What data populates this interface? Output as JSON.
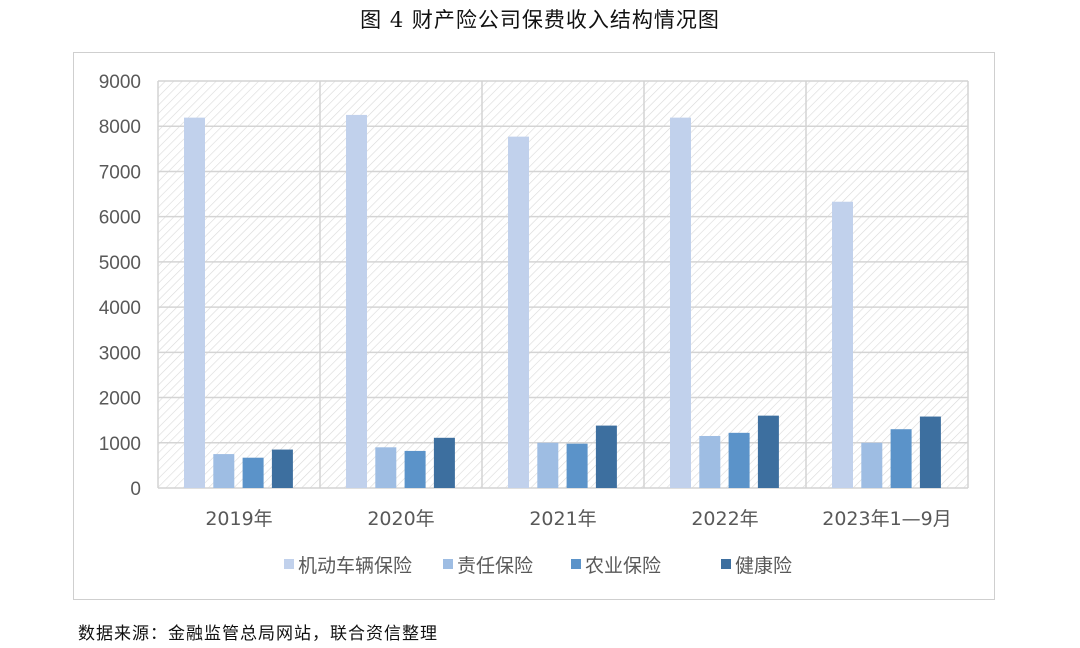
{
  "figure": {
    "title": "图 4  财产险公司保费收入结构情况图",
    "source": "数据来源：金融监管总局网站，联合资信整理"
  },
  "chart_data": {
    "type": "bar",
    "categories": [
      "2019年",
      "2020年",
      "2021年",
      "2022年",
      "2023年1—9月"
    ],
    "series": [
      {
        "name": "机动车辆保险",
        "color": "#c1d1ec",
        "values": [
          8190,
          8250,
          7770,
          8190,
          6330
        ]
      },
      {
        "name": "责任保险",
        "color": "#9ebde3",
        "values": [
          750,
          900,
          1000,
          1150,
          1000
        ]
      },
      {
        "name": "农业保险",
        "color": "#5b93c9",
        "values": [
          670,
          820,
          980,
          1220,
          1300
        ]
      },
      {
        "name": "健康险",
        "color": "#3d6f9f",
        "values": [
          850,
          1110,
          1380,
          1600,
          1580
        ]
      }
    ],
    "yticks": [
      "0",
      "1000",
      "2000",
      "3000",
      "4000",
      "5000",
      "6000",
      "7000",
      "8000",
      "9000"
    ],
    "ylim": [
      0,
      9000
    ],
    "grid": true,
    "legend": "bottom"
  }
}
